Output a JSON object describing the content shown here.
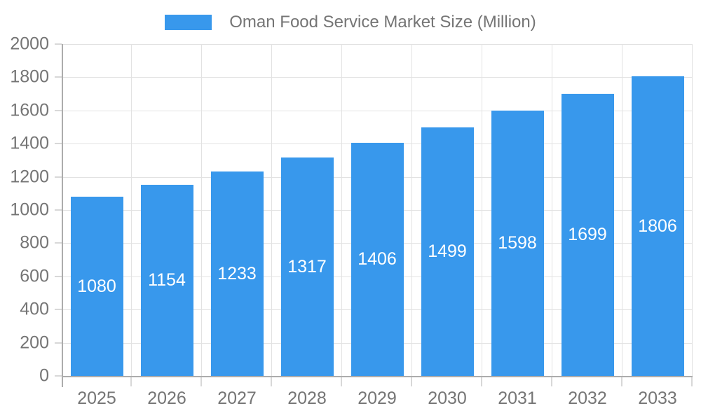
{
  "legend": {
    "label": "Oman Food Service Market Size (Million)"
  },
  "chart_data": {
    "type": "bar",
    "title": "Oman Food Service Market Size (Million)",
    "categories": [
      "2025",
      "2026",
      "2027",
      "2028",
      "2029",
      "2030",
      "2031",
      "2032",
      "2033"
    ],
    "series": [
      {
        "name": "Oman Food Service Market Size (Million)",
        "values": [
          1080,
          1154,
          1233,
          1317,
          1406,
          1499,
          1598,
          1699,
          1806
        ]
      }
    ],
    "value_labels": [
      "1080",
      "1154",
      "1233",
      "1317",
      "1406",
      "1499",
      "1598",
      "1699",
      "1806"
    ],
    "ylim": [
      0,
      2000
    ],
    "yticks": [
      0,
      200,
      400,
      600,
      800,
      1000,
      1200,
      1400,
      1600,
      1800,
      2000
    ],
    "grid": true,
    "legend_position": "top",
    "colors": {
      "bar": "#3898ec",
      "value_label": "#ffffff",
      "axis_text": "#757575",
      "axis_line": "#acacac",
      "gridline": "#e2e2e2",
      "tick_mark": "#d8d8d8",
      "background": "#ffffff"
    }
  }
}
